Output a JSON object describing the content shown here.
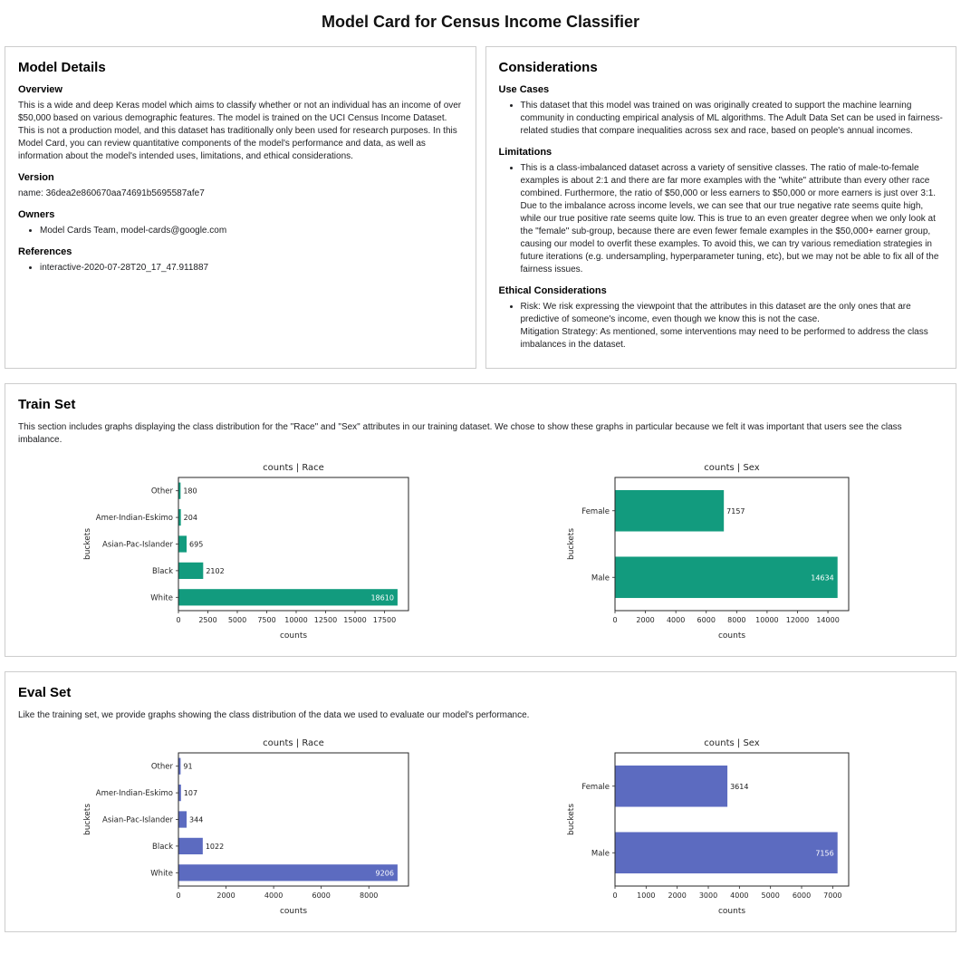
{
  "page_title": "Model Card for Census Income Classifier",
  "model_details": {
    "title": "Model Details",
    "overview_heading": "Overview",
    "overview_text": "This is a wide and deep Keras model which aims to classify whether or not an individual has an income of over $50,000 based on various demographic features. The model is trained on the UCI Census Income Dataset. This is not a production model, and this dataset has traditionally only been used for research purposes. In this Model Card, you can review quantitative components of the model's performance and data, as well as information about the model's intended uses, limitations, and ethical considerations.",
    "version_heading": "Version",
    "version_text": "name: 36dea2e860670aa74691b5695587afe7",
    "owners_heading": "Owners",
    "owners": [
      "Model Cards Team, model-cards@google.com"
    ],
    "references_heading": "References",
    "references": [
      "interactive-2020-07-28T20_17_47.911887"
    ]
  },
  "considerations": {
    "title": "Considerations",
    "use_cases_heading": "Use Cases",
    "use_cases": [
      "This dataset that this model was trained on was originally created to support the machine learning community in conducting empirical analysis of ML algorithms. The Adult Data Set can be used in fairness-related studies that compare inequalities across sex and race, based on people's annual incomes."
    ],
    "limitations_heading": "Limitations",
    "limitations": [
      "This is a class-imbalanced dataset across a variety of sensitive classes. The ratio of male-to-female examples is about 2:1 and there are far more examples with the \"white\" attribute than every other race combined. Furthermore, the ratio of $50,000 or less earners to $50,000 or more earners is just over 3:1. Due to the imbalance across income levels, we can see that our true negative rate seems quite high, while our true positive rate seems quite low. This is true to an even greater degree when we only look at the \"female\" sub-group, because there are even fewer female examples in the $50,000+ earner group, causing our model to overfit these examples. To avoid this, we can try various remediation strategies in future iterations (e.g. undersampling, hyperparameter tuning, etc), but we may not be able to fix all of the fairness issues."
    ],
    "ethical_heading": "Ethical Considerations",
    "ethical": [
      "Risk: We risk expressing the viewpoint that the attributes in this dataset are the only ones that are predictive of someone's income, even though we know this is not the case.\nMitigation Strategy: As mentioned, some interventions may need to be performed to address the class imbalances in the dataset."
    ]
  },
  "train_set": {
    "title": "Train Set",
    "description": "This section includes graphs displaying the class distribution for the \"Race\" and \"Sex\" attributes in our training dataset. We chose to show these graphs in particular because we felt it was important that users see the class imbalance."
  },
  "eval_set": {
    "title": "Eval Set",
    "description": "Like the training set, we provide graphs showing the class distribution of the data we used to evaluate our model's performance."
  },
  "chart_data": [
    {
      "id": "train-race",
      "type": "bar",
      "orientation": "horizontal",
      "title": "counts | Race",
      "categories": [
        "Other",
        "Amer-Indian-Eskimo",
        "Asian-Pac-Islander",
        "Black",
        "White"
      ],
      "values": [
        180,
        204,
        695,
        2102,
        18610
      ],
      "xlabel": "counts",
      "ylabel": "buckets",
      "xticks": [
        0,
        2500,
        5000,
        7500,
        10000,
        12500,
        15000,
        17500
      ],
      "xlim": [
        0,
        19540
      ],
      "bar_color": "#129b7e",
      "grid": false,
      "legend": "none"
    },
    {
      "id": "train-sex",
      "type": "bar",
      "orientation": "horizontal",
      "title": "counts | Sex",
      "categories": [
        "Female",
        "Male"
      ],
      "values": [
        7157,
        14634
      ],
      "xlabel": "counts",
      "ylabel": "buckets",
      "xticks": [
        0,
        2000,
        4000,
        6000,
        8000,
        10000,
        12000,
        14000
      ],
      "xlim": [
        0,
        15366
      ],
      "bar_color": "#129b7e",
      "grid": false,
      "legend": "none"
    },
    {
      "id": "eval-race",
      "type": "bar",
      "orientation": "horizontal",
      "title": "counts | Race",
      "categories": [
        "Other",
        "Amer-Indian-Eskimo",
        "Asian-Pac-Islander",
        "Black",
        "White"
      ],
      "values": [
        91,
        107,
        344,
        1022,
        9206
      ],
      "xlabel": "counts",
      "ylabel": "buckets",
      "xticks": [
        0,
        2000,
        4000,
        6000,
        8000
      ],
      "xlim": [
        0,
        9666
      ],
      "bar_color": "#5c6bc0",
      "grid": false,
      "legend": "none"
    },
    {
      "id": "eval-sex",
      "type": "bar",
      "orientation": "horizontal",
      "title": "counts | Sex",
      "categories": [
        "Female",
        "Male"
      ],
      "values": [
        3614,
        7156
      ],
      "xlabel": "counts",
      "ylabel": "buckets",
      "xticks": [
        0,
        1000,
        2000,
        3000,
        4000,
        5000,
        6000,
        7000
      ],
      "xlim": [
        0,
        7514
      ],
      "bar_color": "#5c6bc0",
      "grid": false,
      "legend": "none"
    }
  ]
}
